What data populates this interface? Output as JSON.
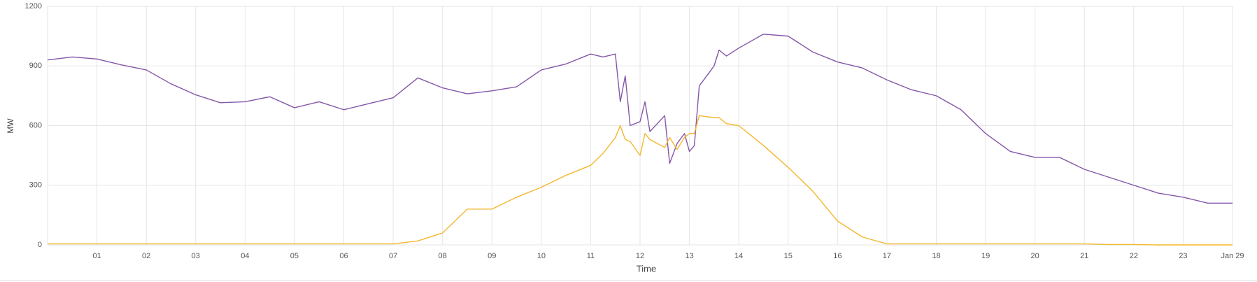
{
  "chart_data": {
    "type": "line",
    "x_label": "Time",
    "y_label": "MW",
    "x": [
      0,
      0.5,
      1,
      1.5,
      2,
      2.5,
      3,
      3.5,
      4,
      4.5,
      5,
      5.5,
      6,
      6.5,
      7,
      7.5,
      8,
      8.5,
      9,
      9.5,
      10,
      10.5,
      11,
      11.25,
      11.5,
      11.6,
      11.7,
      11.8,
      12,
      12.1,
      12.2,
      12.5,
      12.6,
      12.75,
      12.9,
      13,
      13.1,
      13.2,
      13.5,
      13.6,
      13.75,
      14,
      14.5,
      15,
      15.5,
      16,
      16.5,
      17,
      17.5,
      18,
      18.5,
      19,
      19.5,
      20,
      20.5,
      21,
      21.5,
      22,
      22.5,
      23,
      23.5,
      24
    ],
    "series": [
      {
        "color": "#8457a8",
        "values": [
          930,
          945,
          935,
          905,
          880,
          810,
          755,
          715,
          720,
          745,
          690,
          720,
          680,
          710,
          740,
          840,
          790,
          760,
          775,
          795,
          880,
          910,
          960,
          945,
          960,
          720,
          850,
          600,
          620,
          720,
          570,
          650,
          410,
          510,
          560,
          470,
          500,
          800,
          900,
          980,
          950,
          990,
          1060,
          1050,
          970,
          920,
          890,
          830,
          780,
          750,
          680,
          560,
          470,
          440,
          440,
          380,
          340,
          300,
          260,
          240,
          210,
          210
        ]
      },
      {
        "color": "#f4b72e",
        "values": [
          5,
          5,
          5,
          5,
          5,
          5,
          5,
          5,
          5,
          5,
          5,
          5,
          5,
          5,
          5,
          20,
          60,
          180,
          180,
          240,
          290,
          350,
          400,
          460,
          540,
          600,
          530,
          520,
          450,
          560,
          530,
          490,
          540,
          480,
          540,
          560,
          560,
          650,
          640,
          640,
          610,
          600,
          500,
          390,
          270,
          120,
          40,
          5,
          5,
          5,
          5,
          5,
          5,
          5,
          5,
          5,
          2,
          2,
          0,
          0,
          0,
          0
        ]
      }
    ],
    "xlim": [
      0,
      24
    ],
    "xticks": [
      {
        "value": 1,
        "label": "01"
      },
      {
        "value": 2,
        "label": "02"
      },
      {
        "value": 3,
        "label": "03"
      },
      {
        "value": 4,
        "label": "04"
      },
      {
        "value": 5,
        "label": "05"
      },
      {
        "value": 6,
        "label": "06"
      },
      {
        "value": 7,
        "label": "07"
      },
      {
        "value": 8,
        "label": "08"
      },
      {
        "value": 9,
        "label": "09"
      },
      10,
      11,
      12,
      13,
      14,
      15,
      16,
      17,
      18,
      19,
      20,
      21,
      22,
      23,
      {
        "value": 24,
        "label": "Jan 29"
      }
    ],
    "ylim": [
      0,
      1200
    ],
    "yticks": [
      0,
      300,
      600,
      900,
      1200
    ],
    "grid": true
  }
}
